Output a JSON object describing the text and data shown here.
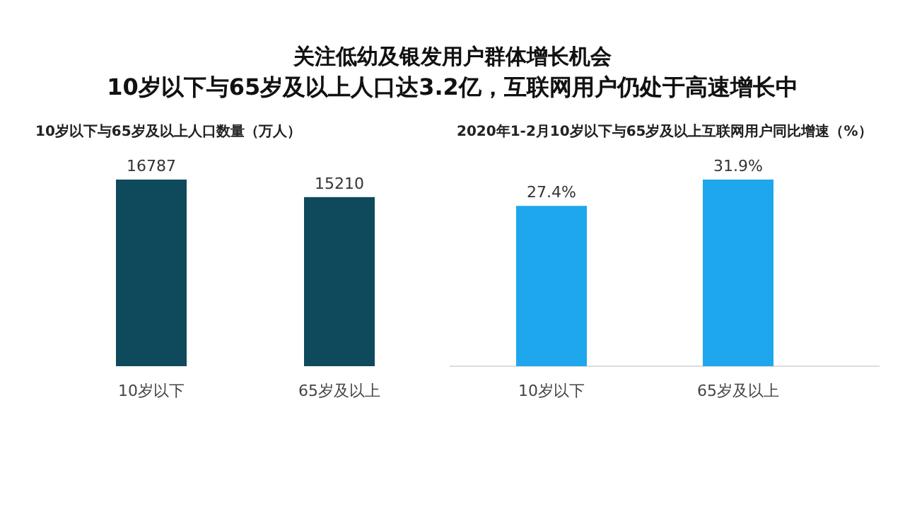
{
  "chart_data": [
    {
      "type": "bar",
      "title": "10岁以下与65岁及以上人口数量（万人）",
      "annotations": [
        "关注低幼及银发用户群体增长机会",
        "10岁以下与65岁及以上人口达3.2亿，互联网用户仍处于高速增长中"
      ],
      "categories": [
        "10岁以下",
        "65岁及以上"
      ],
      "values": [
        16787,
        15210
      ],
      "color": "#0e4a5c",
      "data_labels": true
    },
    {
      "type": "bar",
      "title": "2020年1-2月10岁以下与65岁及以上互联网用户同比增速（%）",
      "categories": [
        "10岁以下",
        "65岁及以上"
      ],
      "values": [
        27.4,
        31.9
      ],
      "color": "#1ea7ec",
      "value_labels": [
        "27.4%",
        "31.9%"
      ]
    }
  ]
}
